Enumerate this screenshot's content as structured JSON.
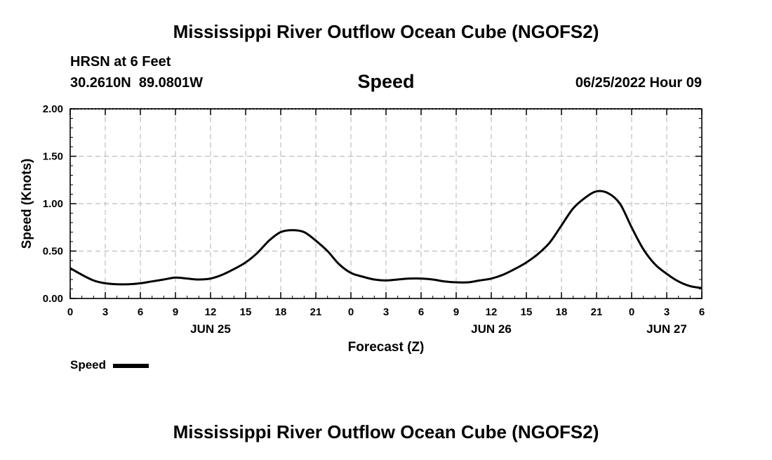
{
  "header": {
    "title": "Mississippi River Outflow Ocean Cube (NGOFS2)",
    "station": "HRSN at 6 Feet",
    "coords": "30.2610N  89.0801W",
    "variable": "Speed",
    "datetime": "06/25/2022 Hour 09",
    "footer_title": "Mississippi River Outflow Ocean Cube (NGOFS2)"
  },
  "legend": {
    "label": "Speed"
  },
  "chart_data": {
    "type": "line",
    "title": "Speed",
    "xlabel": "Forecast (Z)",
    "ylabel": "Speed (Knots)",
    "xlim": [
      0,
      54
    ],
    "ylim": [
      0,
      2
    ],
    "grid": true,
    "x_ticks": [
      0,
      3,
      6,
      9,
      12,
      15,
      18,
      21,
      24,
      27,
      30,
      33,
      36,
      39,
      42,
      45,
      48,
      51,
      54
    ],
    "x_tick_labels": [
      "0",
      "3",
      "6",
      "9",
      "12",
      "15",
      "18",
      "21",
      "0",
      "3",
      "6",
      "9",
      "12",
      "15",
      "18",
      "21",
      "0",
      "3",
      "6"
    ],
    "y_ticks": [
      0,
      0.5,
      1,
      1.5,
      2
    ],
    "y_tick_labels": [
      "0.00",
      "0.50",
      "1.00",
      "1.50",
      "2.00"
    ],
    "date_labels": [
      {
        "label": "JUN 25",
        "x": 12
      },
      {
        "label": "JUN 26",
        "x": 36
      },
      {
        "label": "JUN 27",
        "x": 51
      }
    ],
    "series": [
      {
        "name": "Speed",
        "color": "#000000",
        "x": [
          0,
          1,
          2,
          3,
          4,
          5,
          6,
          7,
          8,
          9,
          10,
          11,
          12,
          13,
          14,
          15,
          16,
          17,
          18,
          19,
          20,
          21,
          22,
          23,
          24,
          25,
          26,
          27,
          28,
          29,
          30,
          31,
          32,
          33,
          34,
          35,
          36,
          37,
          38,
          39,
          40,
          41,
          42,
          43,
          44,
          45,
          46,
          47,
          48,
          49,
          50,
          51,
          52,
          53,
          54
        ],
        "values": [
          0.32,
          0.25,
          0.19,
          0.16,
          0.15,
          0.15,
          0.16,
          0.18,
          0.2,
          0.22,
          0.21,
          0.2,
          0.21,
          0.25,
          0.31,
          0.38,
          0.48,
          0.61,
          0.7,
          0.72,
          0.7,
          0.61,
          0.5,
          0.36,
          0.27,
          0.23,
          0.2,
          0.19,
          0.2,
          0.21,
          0.21,
          0.2,
          0.18,
          0.17,
          0.17,
          0.19,
          0.21,
          0.25,
          0.31,
          0.38,
          0.47,
          0.59,
          0.77,
          0.95,
          1.06,
          1.13,
          1.11,
          1.0,
          0.75,
          0.52,
          0.36,
          0.26,
          0.18,
          0.13,
          0.11
        ]
      }
    ]
  }
}
